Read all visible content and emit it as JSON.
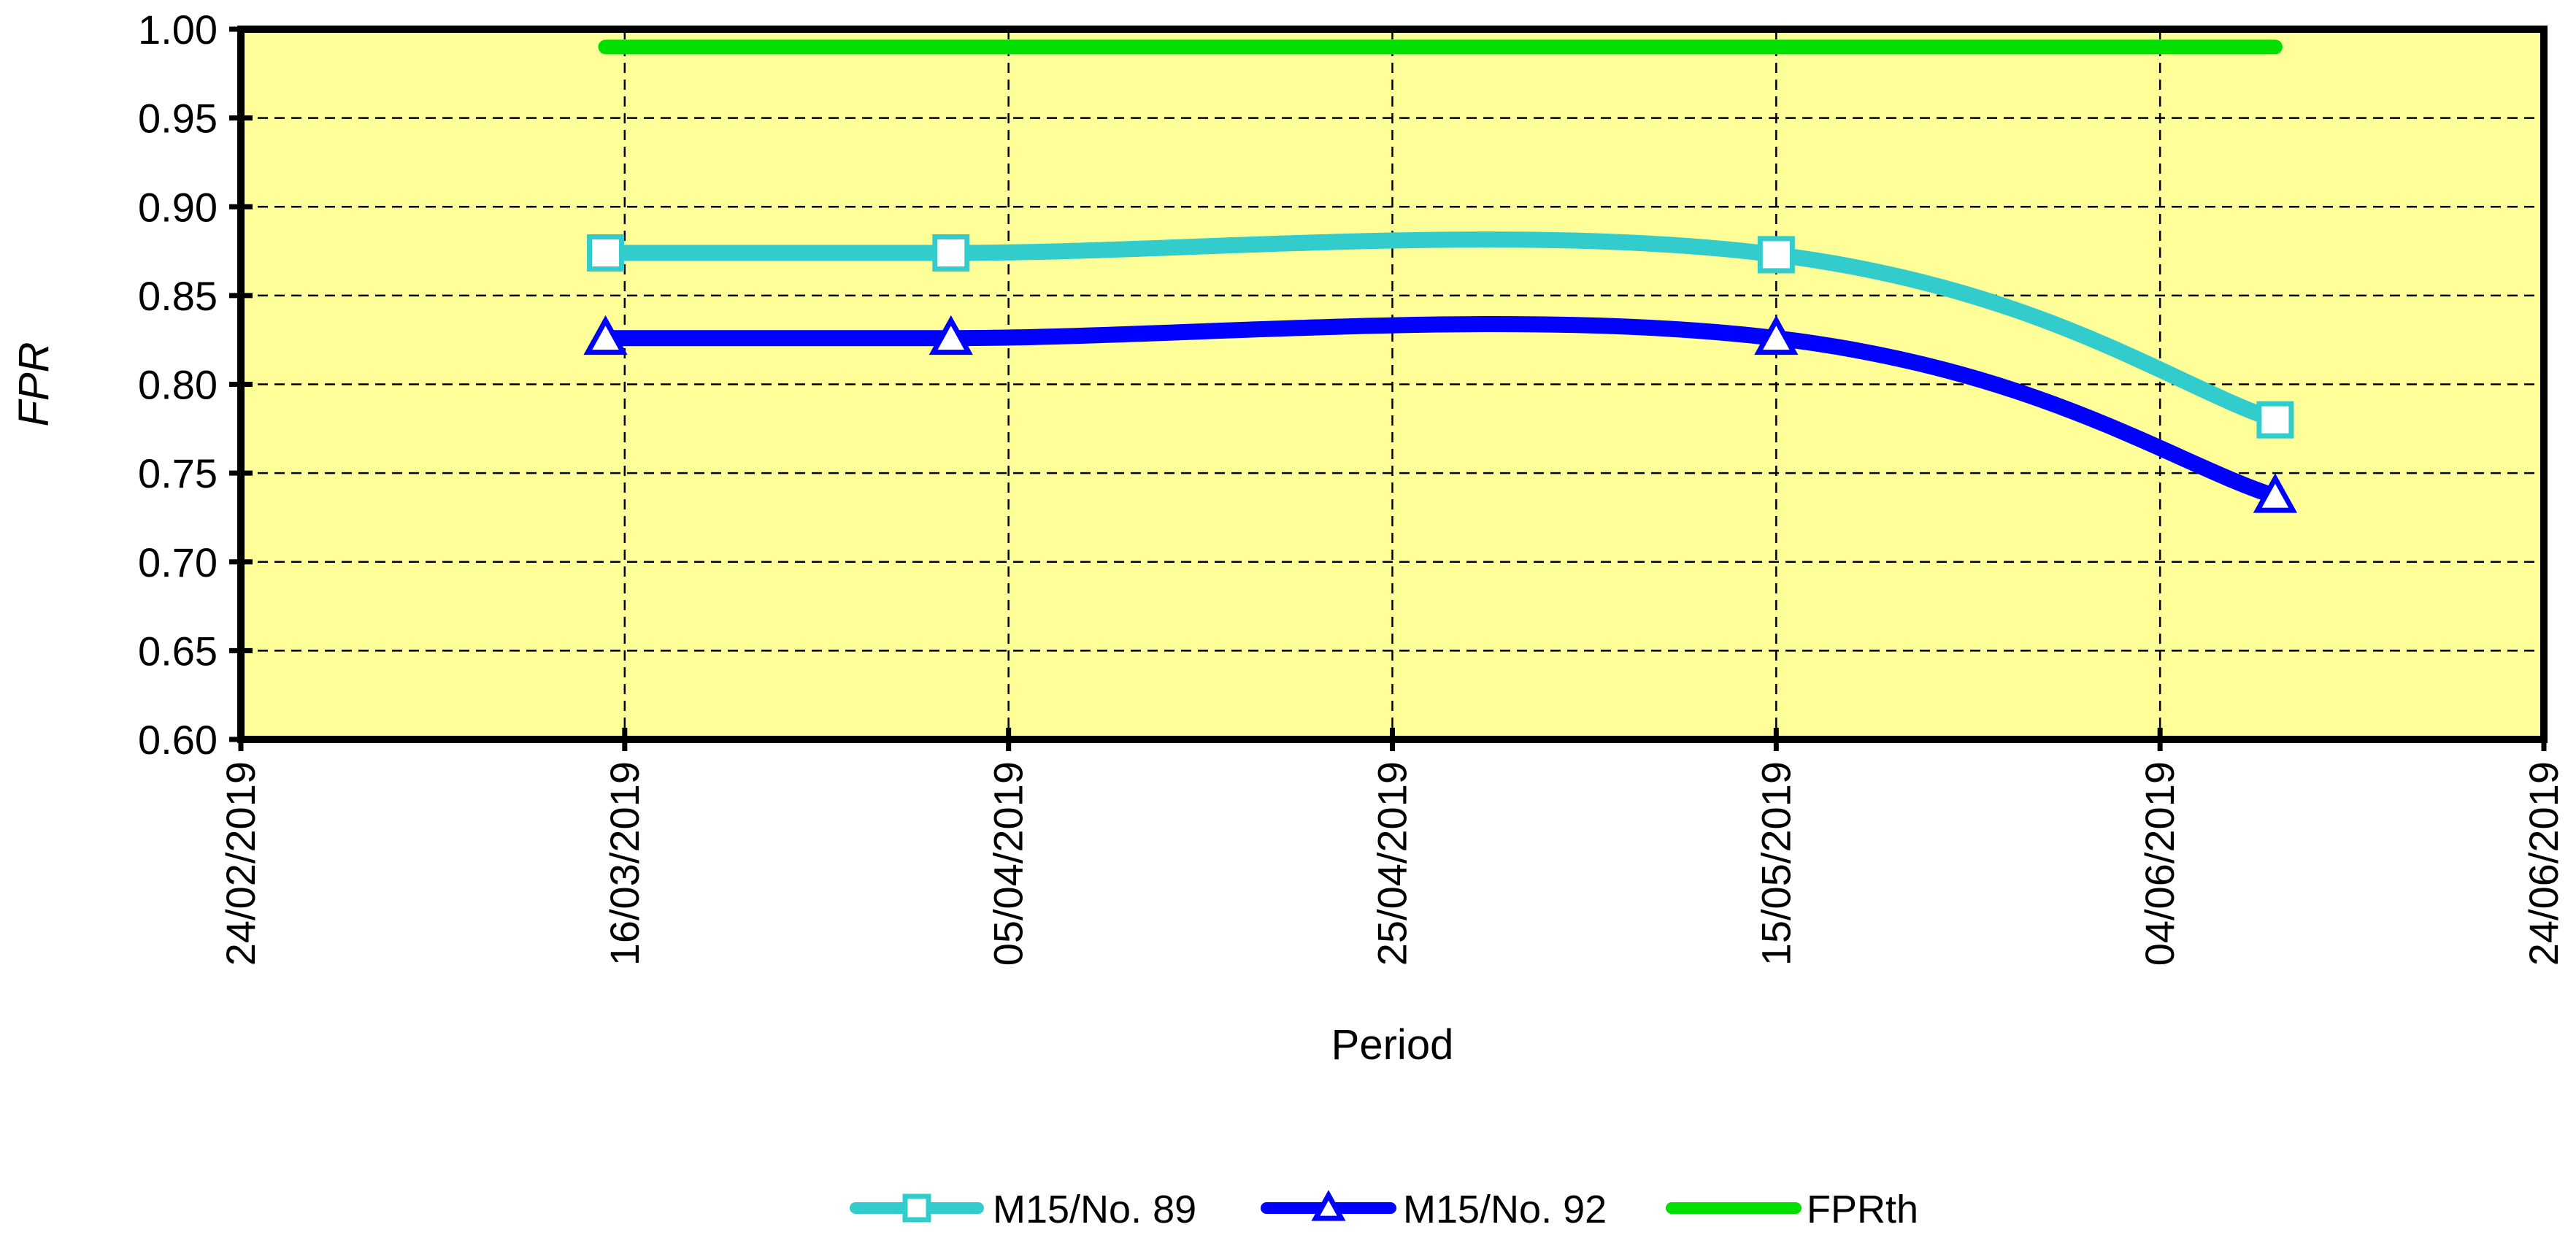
{
  "chart_data": {
    "type": "line",
    "title": "",
    "xlabel": "Period",
    "ylabel": "FPR",
    "x_axis": {
      "scale": "date",
      "min": "24/02/2019",
      "max": "24/06/2019",
      "ticks": [
        "24/02/2019",
        "16/03/2019",
        "05/04/2019",
        "25/04/2019",
        "15/05/2019",
        "04/06/2019",
        "24/06/2019"
      ]
    },
    "y_axis": {
      "min": 0.6,
      "max": 1.0,
      "ticks": [
        "0.60",
        "0.65",
        "0.70",
        "0.75",
        "0.80",
        "0.85",
        "0.90",
        "0.95",
        "1.00"
      ]
    },
    "grid": true,
    "legend_position": "bottom",
    "plot_background": "#FFFF99",
    "series": [
      {
        "name": "M15/No. 89",
        "color": "#33CCCC",
        "marker": "square",
        "smooth": true,
        "points": [
          {
            "x": "15/03/2019",
            "y": 0.874
          },
          {
            "x": "02/04/2019",
            "y": 0.874
          },
          {
            "x": "15/05/2019",
            "y": 0.873
          },
          {
            "x": "10/06/2019",
            "y": 0.78
          }
        ]
      },
      {
        "name": "M15/No. 92",
        "color": "#0000FF",
        "marker": "triangle",
        "smooth": true,
        "points": [
          {
            "x": "15/03/2019",
            "y": 0.826
          },
          {
            "x": "02/04/2019",
            "y": 0.826
          },
          {
            "x": "15/05/2019",
            "y": 0.826
          },
          {
            "x": "10/06/2019",
            "y": 0.737
          }
        ]
      },
      {
        "name": "FPRth",
        "color": "#00E000",
        "marker": "none",
        "smooth": false,
        "points": [
          {
            "x": "15/03/2019",
            "y": 0.99
          },
          {
            "x": "10/06/2019",
            "y": 0.99
          }
        ]
      }
    ]
  }
}
